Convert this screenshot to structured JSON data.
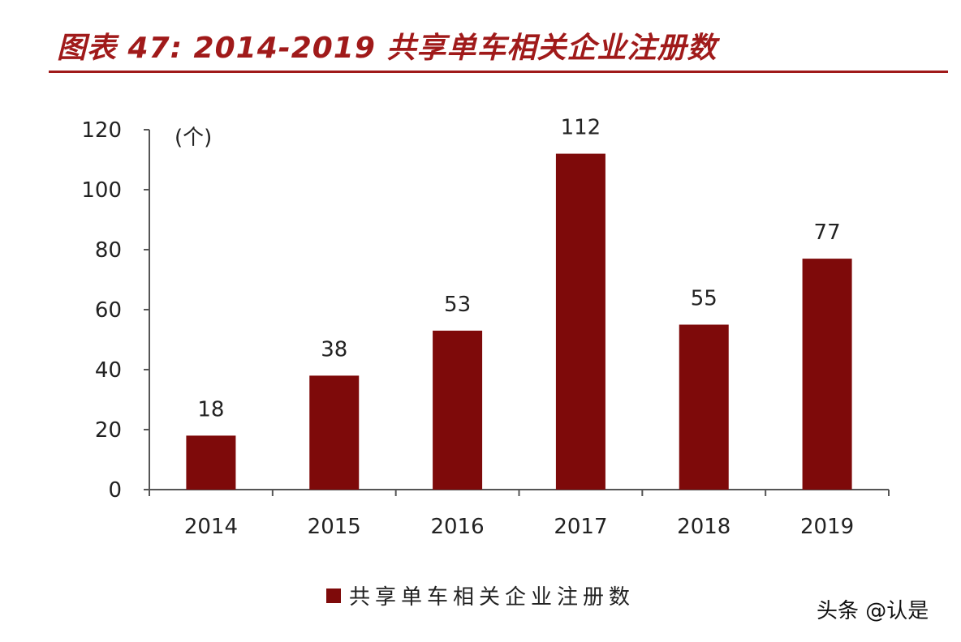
{
  "title": "图表 47: 2014-2019 共享单车相关企业注册数",
  "watermark": "头条 @认是",
  "colors": {
    "bar": "#7e0a0a",
    "title": "#a01a1a",
    "axis": "#555555"
  },
  "chart_data": {
    "type": "bar",
    "categories": [
      "2014",
      "2015",
      "2016",
      "2017",
      "2018",
      "2019"
    ],
    "series": [
      {
        "name": "共享单车相关企业注册数",
        "values": [
          18,
          38,
          53,
          112,
          55,
          77
        ]
      }
    ],
    "unit_label": "(个)",
    "ylim": [
      0,
      120
    ],
    "yticks": [
      0,
      20,
      40,
      60,
      80,
      100,
      120
    ],
    "grid": false,
    "legend": "bottom"
  }
}
